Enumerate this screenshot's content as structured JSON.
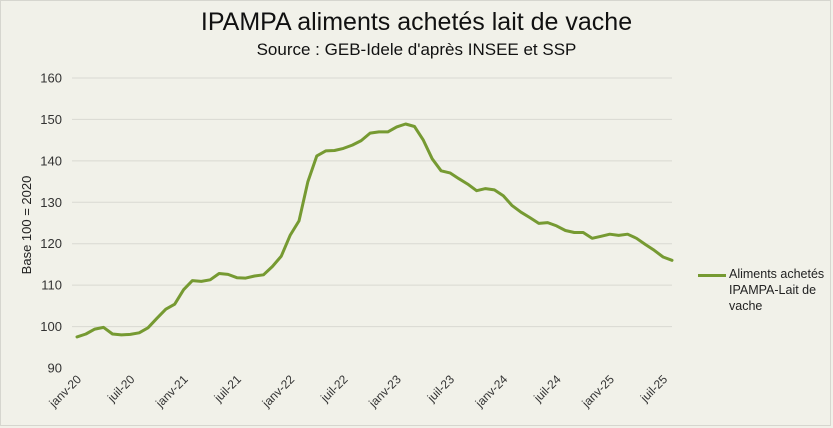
{
  "chart_data": {
    "type": "line",
    "title": "IPAMPA aliments achetés lait de vache",
    "subtitle": "Source :  GEB-Idele d'après INSEE et SSP",
    "ylabel": "Base 100 = 2020",
    "xlabel": "",
    "ylim": [
      90,
      160
    ],
    "yticks": [
      90,
      100,
      110,
      120,
      130,
      140,
      150,
      160
    ],
    "grid": true,
    "legend_position": "right",
    "x_tick_labels": [
      "janv-20",
      "juil-20",
      "janv-21",
      "juil-21",
      "janv-22",
      "juil-22",
      "janv-23",
      "juil-23",
      "janv-24",
      "juil-24",
      "janv-25",
      "juil-25"
    ],
    "x": [
      "2020-01",
      "2020-02",
      "2020-03",
      "2020-04",
      "2020-05",
      "2020-06",
      "2020-07",
      "2020-08",
      "2020-09",
      "2020-10",
      "2020-11",
      "2020-12",
      "2021-01",
      "2021-02",
      "2021-03",
      "2021-04",
      "2021-05",
      "2021-06",
      "2021-07",
      "2021-08",
      "2021-09",
      "2021-10",
      "2021-11",
      "2021-12",
      "2022-01",
      "2022-02",
      "2022-03",
      "2022-04",
      "2022-05",
      "2022-06",
      "2022-07",
      "2022-08",
      "2022-09",
      "2022-10",
      "2022-11",
      "2022-12",
      "2023-01",
      "2023-02",
      "2023-03",
      "2023-04",
      "2023-05",
      "2023-06",
      "2023-07",
      "2023-08",
      "2023-09",
      "2023-10",
      "2023-11",
      "2023-12",
      "2024-01",
      "2024-02",
      "2024-03",
      "2024-04",
      "2024-05",
      "2024-06",
      "2024-07",
      "2024-08",
      "2024-09",
      "2024-10",
      "2024-11",
      "2024-12",
      "2025-01",
      "2025-02",
      "2025-03",
      "2025-04",
      "2025-05",
      "2025-06",
      "2025-07",
      "2025-08"
    ],
    "series": [
      {
        "name": "Aliments achetés IPAMPA-Lait de vache",
        "color": "#769a32",
        "values": [
          97.5,
          98.2,
          99.4,
          99.8,
          98.2,
          98.0,
          98.1,
          98.5,
          99.7,
          102.0,
          104.2,
          105.4,
          108.9,
          111.1,
          110.9,
          111.3,
          112.8,
          112.6,
          111.8,
          111.7,
          112.2,
          112.5,
          114.5,
          117.0,
          122.0,
          125.5,
          135.0,
          141.2,
          142.4,
          142.5,
          143.0,
          143.8,
          144.9,
          146.7,
          147.0,
          147.0,
          148.2,
          148.9,
          148.3,
          145.0,
          140.5,
          137.6,
          137.1,
          135.7,
          134.4,
          132.8,
          133.3,
          133.0,
          131.6,
          129.2,
          127.6,
          126.3,
          124.9,
          125.1,
          124.3,
          123.2,
          122.7,
          122.7,
          121.3,
          121.8,
          122.3,
          122.0,
          122.3,
          121.3,
          119.8,
          118.4,
          116.8,
          116.0
        ]
      }
    ]
  }
}
